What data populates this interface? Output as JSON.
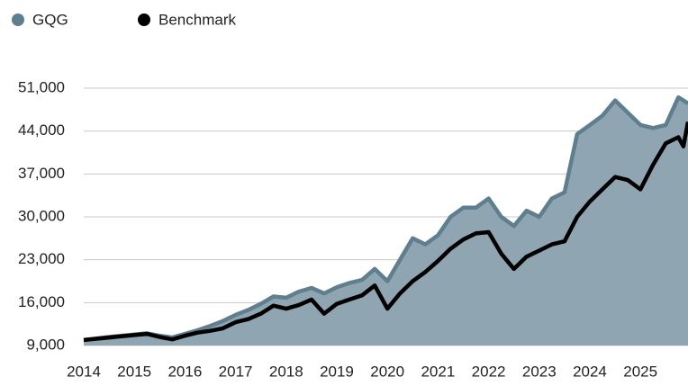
{
  "chart_data": {
    "type": "line",
    "x": [
      2014,
      2014.5,
      2015,
      2015.25,
      2015.5,
      2015.75,
      2016,
      2016.25,
      2016.5,
      2016.75,
      2017,
      2017.25,
      2017.5,
      2017.75,
      2018,
      2018.25,
      2018.5,
      2018.75,
      2019,
      2019.25,
      2019.5,
      2019.75,
      2020,
      2020.25,
      2020.5,
      2020.75,
      2021,
      2021.25,
      2021.5,
      2021.75,
      2022,
      2022.25,
      2022.5,
      2022.75,
      2023,
      2023.25,
      2023.5,
      2023.75,
      2024,
      2024.25,
      2024.5,
      2024.75,
      2025,
      2025.25,
      2025.5,
      2025.75,
      2025.85,
      2025.94
    ],
    "series": [
      {
        "name": "GQG",
        "color": "#5f7f8f",
        "fill": "#8fa5b1",
        "values": [
          9900,
          10400,
          10800,
          11000,
          10600,
          10300,
          10900,
          11500,
          12200,
          13000,
          14000,
          14800,
          15800,
          17000,
          16800,
          17800,
          18400,
          17500,
          18500,
          19200,
          19700,
          21500,
          19500,
          23000,
          26500,
          25500,
          27000,
          30000,
          31500,
          31500,
          33000,
          30000,
          28500,
          31000,
          30000,
          33000,
          34000,
          43500,
          45000,
          46500,
          49000,
          47000,
          45000,
          44500,
          45000,
          49500,
          49000,
          48500
        ]
      },
      {
        "name": "Benchmark",
        "color": "#000000",
        "values": [
          9900,
          10300,
          10700,
          10900,
          10400,
          10000,
          10600,
          11100,
          11400,
          11800,
          12800,
          13300,
          14200,
          15500,
          15000,
          15600,
          16500,
          14200,
          15800,
          16500,
          17200,
          18800,
          15000,
          17500,
          19500,
          21000,
          22800,
          24800,
          26300,
          27300,
          27500,
          24000,
          21500,
          23500,
          24500,
          25500,
          26000,
          30000,
          32500,
          34500,
          36500,
          36000,
          34500,
          38500,
          42000,
          43000,
          41500,
          45500
        ]
      }
    ],
    "xlim": [
      2014,
      2025.94
    ],
    "xticks": [
      2014,
      2015,
      2016,
      2017,
      2018,
      2019,
      2020,
      2021,
      2022,
      2023,
      2024,
      2025
    ],
    "ylim": [
      9000,
      51000
    ],
    "yticks": [
      {
        "value": 9000,
        "label": "9,000"
      },
      {
        "value": 16000,
        "label": "16,000"
      },
      {
        "value": 23000,
        "label": "23,000"
      },
      {
        "value": 30000,
        "label": "30,000"
      },
      {
        "value": 37000,
        "label": "37,000"
      },
      {
        "value": 44000,
        "label": "44,000"
      },
      {
        "value": 51000,
        "label": "51,000"
      }
    ],
    "grid": true
  }
}
